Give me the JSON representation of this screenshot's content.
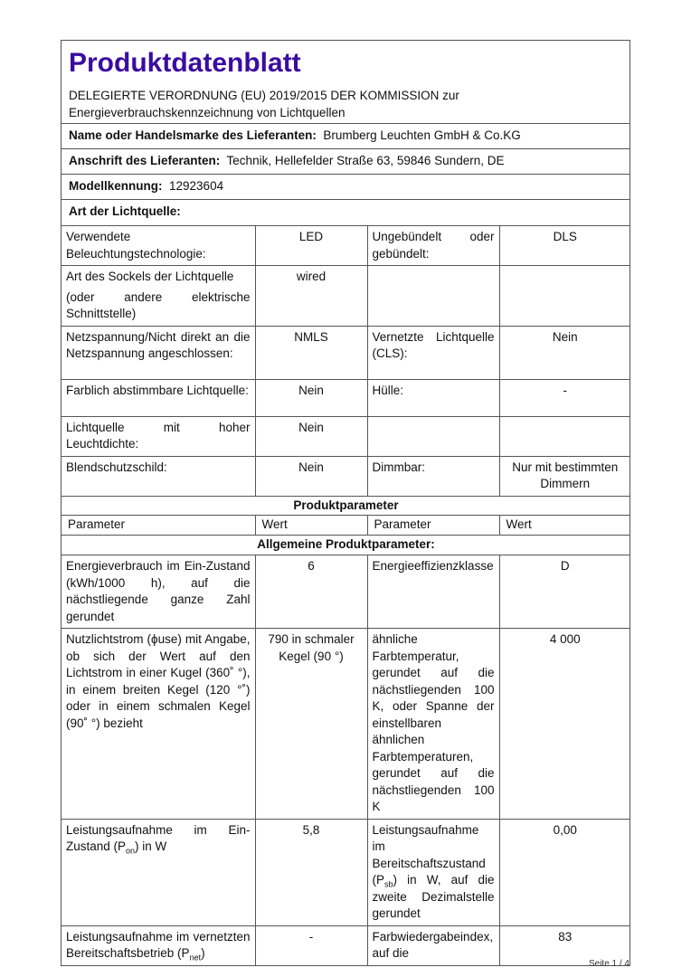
{
  "title": "Produktdatenblatt",
  "regulation": "DELEGIERTE VERORDNUNG (EU) 2019/2015 DER KOMMISSION zur Energieverbrauchskennzeichnung von Lichtquellen",
  "supplier": {
    "label": "Name oder Handelsmarke des Lieferanten:",
    "value": "Brumberg Leuchten GmbH & Co.KG"
  },
  "address": {
    "label": "Anschrift des Lieferanten:",
    "value": "Technik, Hellefelder Straße 63, 59846 Sundern, DE"
  },
  "model": {
    "label": "Modellkennung:",
    "value": "12923604"
  },
  "type_heading": "Art der Lichtquelle:",
  "type_rows": [
    {
      "p1": "Verwendete Beleuchtungstechnologie:",
      "v1": "LED",
      "p2": "Ungebündelt oder gebündelt:",
      "v2": "DLS"
    },
    {
      "p1": "Art des Sockels der Lichtquelle",
      "p1b": "(oder andere elektrische Schnittstelle)",
      "v1": "wired",
      "p2": "",
      "v2": ""
    },
    {
      "p1": "Netzspannung/Nicht direkt an die Netzspannung angeschlossen:",
      "v1": "NMLS",
      "p2": "Vernetzte Lichtquelle (CLS):",
      "v2": "Nein"
    },
    {
      "p1": "Farblich abstimmbare Lichtquelle:",
      "v1": "Nein",
      "p2": "Hülle:",
      "v2": "-"
    },
    {
      "p1": "Lichtquelle mit hoher Leuchtdichte:",
      "v1": "Nein",
      "p2": "",
      "v2": ""
    },
    {
      "p1": "Blendschutzschild:",
      "v1": "Nein",
      "p2": "Dimmbar:",
      "v2": "Nur mit bestimmten Dimmern"
    }
  ],
  "params_heading": "Produktparameter",
  "col_headers": [
    "Parameter",
    "Wert",
    "Parameter",
    "Wert"
  ],
  "general_heading": "Allgemeine Produktparameter:",
  "param_rows": [
    {
      "p1": "Energieverbrauch im Ein-Zustand (kWh/1000 h), auf die nächstliegende ganze Zahl gerundet",
      "v1": "6",
      "p2": "Energieeffizienzklasse",
      "v2": "D"
    },
    {
      "p1": "Nutzlichtstrom (ϕuse) mit Angabe, ob sich der Wert auf den Lichtstrom in einer Kugel (360˚ °), in einem breiten Kegel (120 °˚) oder in einem schmalen Kegel (90˚ °) bezieht",
      "v1": "790 in schmaler Kegel (90 °)",
      "p2": "ähnliche Farbtemperatur, gerundet auf die nächstliegenden 100 K, oder Spanne der einstellbaren ähnlichen Farbtemperaturen, gerundet auf die nächstliegenden 100 K",
      "v2": "4 000"
    },
    {
      "p1a": "Leistungsaufnahme im Ein-Zustand (P",
      "p1s": "on",
      "p1c": ") in W",
      "v1": "5,8",
      "p2a": "Leistungsaufnahme im Bereitschaftszustand (P",
      "p2s": "sb",
      "p2c": ") in W, auf die zweite Dezimalstelle gerundet",
      "v2": "0,00"
    },
    {
      "p1a": "Leistungsaufnahme im vernetzten Bereitschaftsbetrieb (P",
      "p1s": "net",
      "p1c": ")",
      "v1": "-",
      "p2": "Farbwiedergabeindex, auf die",
      "v2": "83"
    }
  ],
  "footer": "Seite 1 / 4"
}
